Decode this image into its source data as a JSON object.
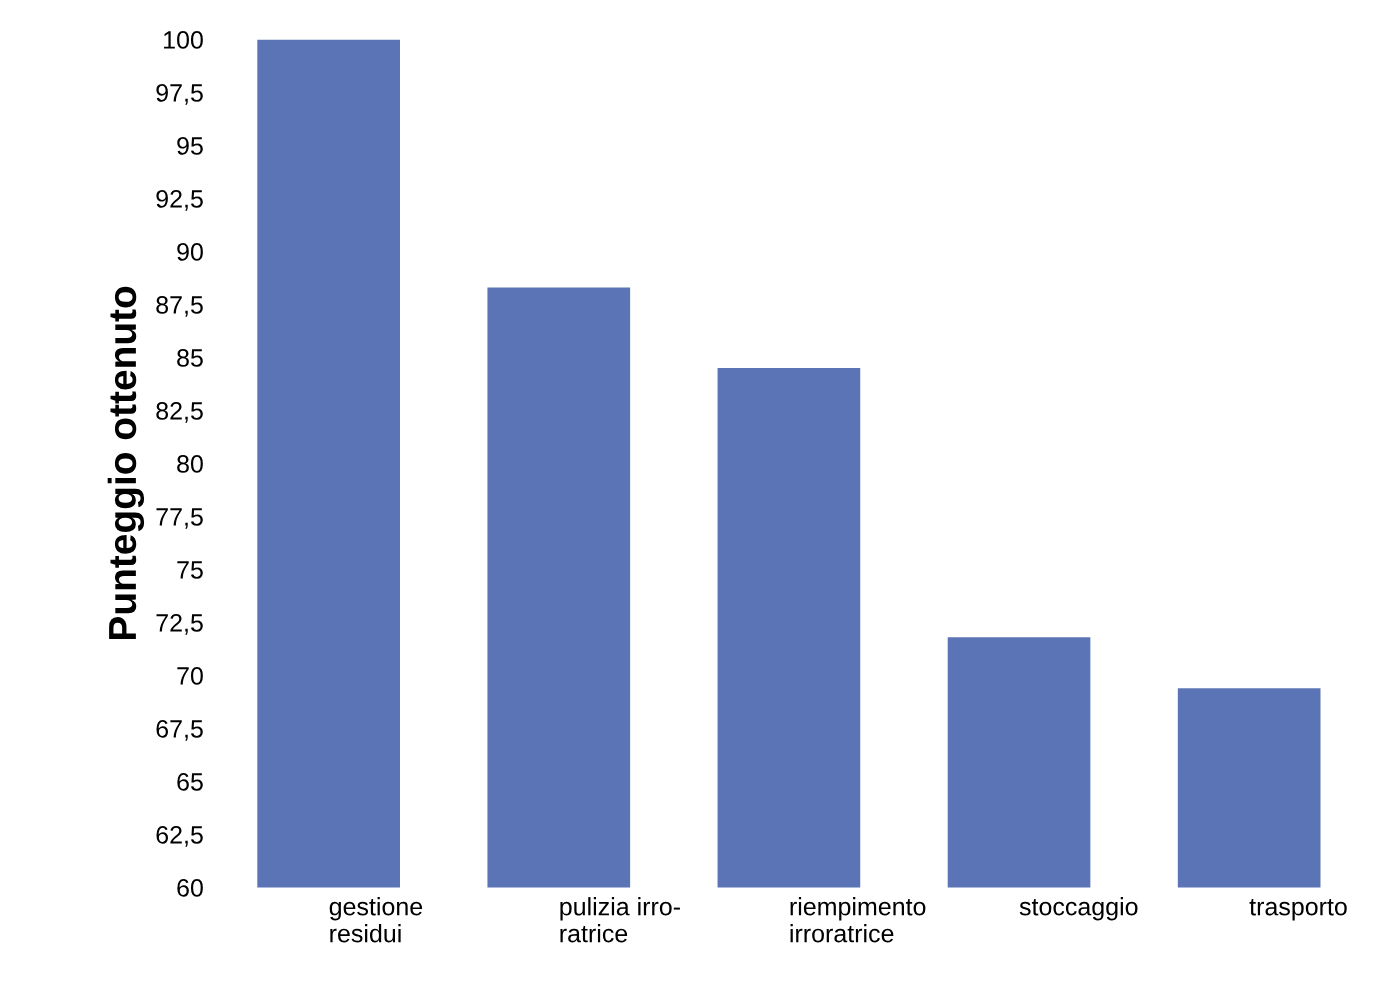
{
  "chart_data": {
    "type": "bar",
    "ylabel": "Punteggio ottenuto",
    "categories": [
      "gestione\nresidui",
      "pulizia irro-\nratrice",
      "riempimento\nirroratrice",
      "stoccaggio",
      "trasporto"
    ],
    "values": [
      100,
      88.3,
      84.5,
      71.8,
      69.4
    ],
    "color": "#5b74b5",
    "ylim": [
      60,
      100
    ],
    "yticks": [
      60,
      {
        "value": 62.5,
        "label": "62,5"
      },
      65,
      {
        "value": 67.5,
        "label": "67,5"
      },
      70,
      {
        "value": 72.5,
        "label": "72,5"
      },
      75,
      {
        "value": 77.5,
        "label": "77,5"
      },
      80,
      {
        "value": 82.5,
        "label": "82,5"
      },
      85,
      {
        "value": 87.5,
        "label": "87,5"
      },
      90,
      {
        "value": 92.5,
        "label": "92,5"
      },
      95,
      {
        "value": 97.5,
        "label": "97,5"
      },
      100
    ],
    "grid": false
  }
}
